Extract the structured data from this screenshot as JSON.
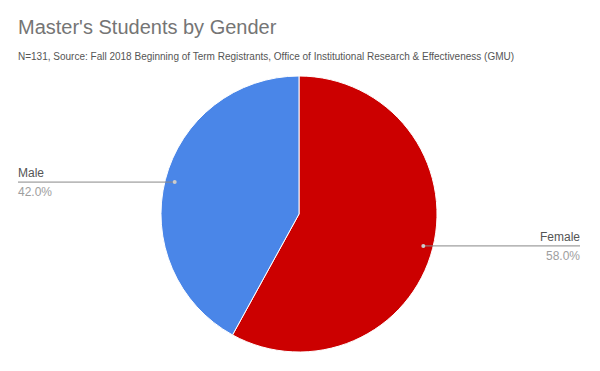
{
  "chart_data": {
    "type": "pie",
    "title": "Master's Students by Gender",
    "subtitle": "N=131, Source: Fall 2018 Beginning of Term Registrants, Office of Institutional Research & Effectiveness (GMU)",
    "categories": [
      "Female",
      "Male"
    ],
    "values": [
      58,
      42
    ],
    "value_labels": [
      "58.0%",
      "42.0%"
    ],
    "colors": [
      "#cc0000",
      "#4a86e8"
    ],
    "data_labels": true
  }
}
